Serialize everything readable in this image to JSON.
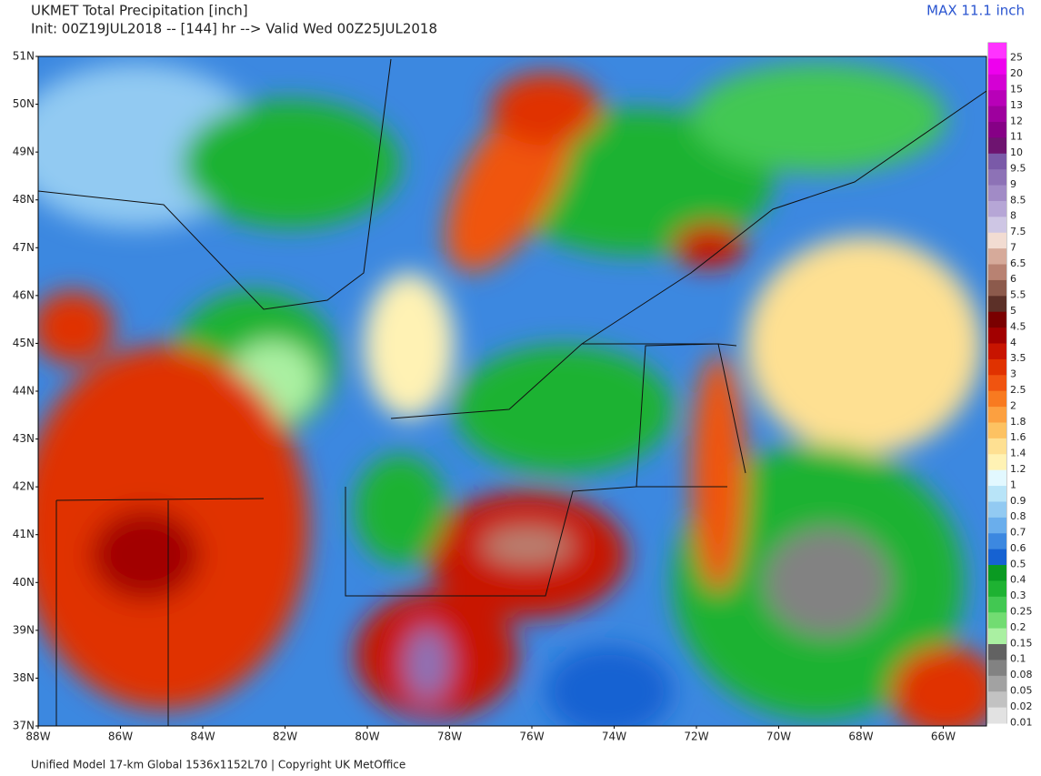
{
  "header": {
    "title": "UKMET Total Precipitation [inch]",
    "subtitle": "Init: 00Z19JUL2018 -- [144] hr --> Valid Wed 00Z25JUL2018",
    "max": "MAX 11.1 inch"
  },
  "map": {
    "lat_labels": [
      "51N",
      "50N",
      "49N",
      "48N",
      "47N",
      "46N",
      "45N",
      "44N",
      "43N",
      "42N",
      "41N",
      "40N",
      "39N",
      "38N",
      "37N"
    ],
    "lon_labels": [
      "88W",
      "86W",
      "84W",
      "82W",
      "80W",
      "78W",
      "76W",
      "74W",
      "72W",
      "70W",
      "68W",
      "66W"
    ]
  },
  "colorbar": [
    {
      "label": "25",
      "color": "#ff33ff"
    },
    {
      "label": "20",
      "color": "#ee00ee"
    },
    {
      "label": "15",
      "color": "#d400d4"
    },
    {
      "label": "13",
      "color": "#b800b8"
    },
    {
      "label": "12",
      "color": "#9e009e"
    },
    {
      "label": "11",
      "color": "#860086"
    },
    {
      "label": "10",
      "color": "#6e1470"
    },
    {
      "label": "9.5",
      "color": "#7a5aa8"
    },
    {
      "label": "9",
      "color": "#8d72b6"
    },
    {
      "label": "8.5",
      "color": "#a18bc6"
    },
    {
      "label": "8",
      "color": "#b6a6d6"
    },
    {
      "label": "7.5",
      "color": "#cec6e4"
    },
    {
      "label": "7",
      "color": "#f2dcd2"
    },
    {
      "label": "6.5",
      "color": "#d6aa9a"
    },
    {
      "label": "6",
      "color": "#b88272"
    },
    {
      "label": "5.5",
      "color": "#8c5a4c"
    },
    {
      "label": "5",
      "color": "#5c3028"
    },
    {
      "label": "4.5",
      "color": "#7a0000"
    },
    {
      "label": "4",
      "color": "#a20000"
    },
    {
      "label": "3.5",
      "color": "#c81400"
    },
    {
      "label": "3",
      "color": "#e03200"
    },
    {
      "label": "2.5",
      "color": "#f05410"
    },
    {
      "label": "2",
      "color": "#f87a20"
    },
    {
      "label": "1.8",
      "color": "#fca040"
    },
    {
      "label": "1.6",
      "color": "#fdc262"
    },
    {
      "label": "1.4",
      "color": "#fee092"
    },
    {
      "label": "1.2",
      "color": "#fff2b4"
    },
    {
      "label": "1",
      "color": "#e2f8ff"
    },
    {
      "label": "0.9",
      "color": "#b8e4f8"
    },
    {
      "label": "0.8",
      "color": "#92caf2"
    },
    {
      "label": "0.7",
      "color": "#6aaeec"
    },
    {
      "label": "0.6",
      "color": "#3c88e0"
    },
    {
      "label": "0.5",
      "color": "#1662d2"
    },
    {
      "label": "0.4",
      "color": "#0a9a22"
    },
    {
      "label": "0.3",
      "color": "#1eb232"
    },
    {
      "label": "0.25",
      "color": "#42c852"
    },
    {
      "label": "0.2",
      "color": "#72dc72"
    },
    {
      "label": "0.15",
      "color": "#aaf0a2"
    },
    {
      "label": "0.1",
      "color": "#626262"
    },
    {
      "label": "0.08",
      "color": "#828282"
    },
    {
      "label": "0.05",
      "color": "#a2a2a2"
    },
    {
      "label": "0.02",
      "color": "#c2c2c2"
    },
    {
      "label": "0.01",
      "color": "#e2e2e2"
    }
  ],
  "footer": "Unified Model 17-km Global 1536x1152L70 | Copyright UK MetOffice"
}
